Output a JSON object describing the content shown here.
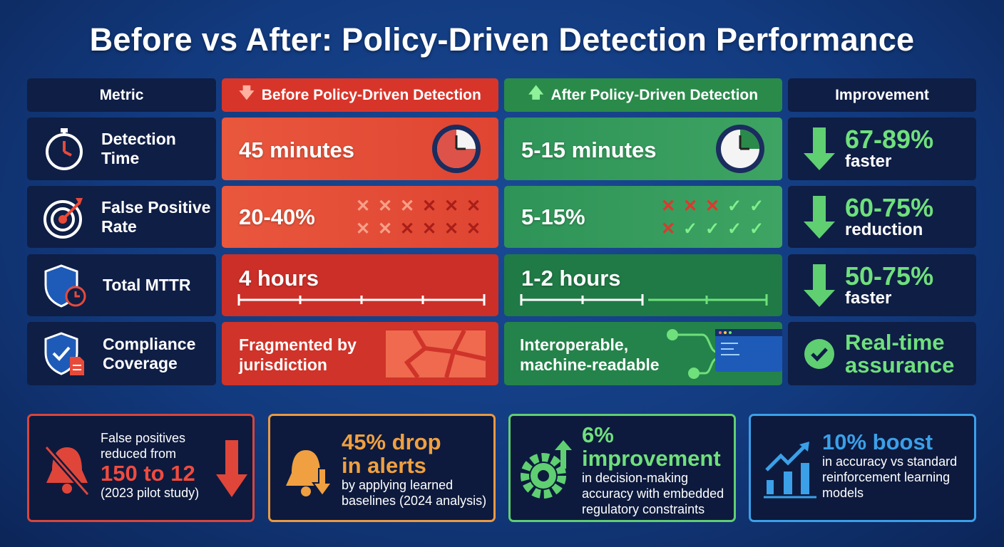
{
  "title": "Before vs After: Policy-Driven Detection Performance",
  "headers": {
    "metric": "Metric",
    "before": "Before Policy-Driven Detection",
    "after": "After Policy-Driven Detection",
    "improvement": "Improvement"
  },
  "rows": [
    {
      "metric": "Detection Time",
      "before": "45 minutes",
      "after": "5-15 minutes",
      "improvement_value": "67-89%",
      "improvement_label": "faster",
      "icon": "stopwatch-icon"
    },
    {
      "metric": "False Positive Rate",
      "before": "20-40%",
      "after": "5-15%",
      "improvement_value": "60-75%",
      "improvement_label": "reduction",
      "icon": "target-icon"
    },
    {
      "metric": "Total MTTR",
      "before": "4 hours",
      "after": "1-2 hours",
      "improvement_value": "50-75%",
      "improvement_label": "faster",
      "icon": "shield-clock-icon"
    },
    {
      "metric": "Compliance Coverage",
      "before": "Fragmented by jurisdiction",
      "after": "Interoperable, machine-readable",
      "improvement_value": "Real-time assurance",
      "icon": "shield-check-document-icon"
    }
  ],
  "cards": [
    {
      "line1": "False positives reduced from",
      "highlight": "150 to 12",
      "note": "(2023 pilot study)",
      "color": "#e0453a"
    },
    {
      "highlight": "45% drop in alerts",
      "note": "by applying learned baselines (2024 analysis)",
      "color": "#f0a040"
    },
    {
      "highlight": "6% improvement",
      "note": "in decision-making accuracy with embedded regulatory constraints",
      "color": "#5fcf72"
    },
    {
      "highlight": "10% boost",
      "note": "in accuracy vs standard reinforcement learning models",
      "color": "#3ba0e8"
    }
  ],
  "colors": {
    "before": "#e34d37",
    "after": "#36a05f",
    "improvement": "#6fe07c",
    "navy": "#0f1e45"
  }
}
